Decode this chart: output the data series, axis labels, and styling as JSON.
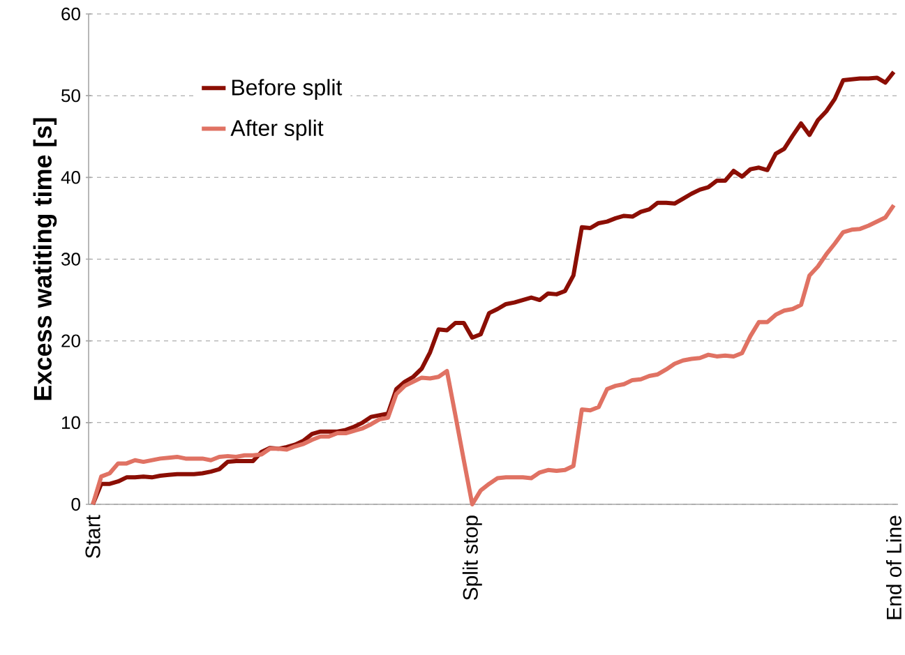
{
  "chart_data": {
    "type": "line",
    "ylabel": "Excess watiting time [s]",
    "categories": [
      "Start",
      null,
      null,
      null,
      null,
      null,
      null,
      null,
      null,
      null,
      null,
      null,
      null,
      null,
      null,
      null,
      null,
      null,
      null,
      null,
      null,
      null,
      null,
      null,
      null,
      null,
      null,
      null,
      null,
      null,
      null,
      null,
      null,
      null,
      null,
      null,
      null,
      null,
      null,
      null,
      null,
      null,
      null,
      null,
      null,
      "Split stop",
      null,
      null,
      null,
      null,
      null,
      null,
      null,
      null,
      null,
      null,
      null,
      null,
      null,
      null,
      null,
      null,
      null,
      null,
      null,
      null,
      null,
      null,
      null,
      null,
      null,
      null,
      null,
      null,
      null,
      null,
      null,
      null,
      null,
      null,
      null,
      null,
      null,
      null,
      null,
      null,
      null,
      null,
      null,
      null,
      null,
      null,
      null,
      null,
      null,
      "End of Line"
    ],
    "series": [
      {
        "name": "Before split",
        "color": "#8b0e04",
        "values": [
          0,
          2.5,
          2.5,
          2.8,
          3.3,
          3.3,
          3.4,
          3.3,
          3.5,
          3.6,
          3.7,
          3.7,
          3.7,
          3.8,
          4.0,
          4.3,
          5.2,
          5.3,
          5.3,
          5.3,
          6.4,
          6.9,
          6.8,
          7.0,
          7.3,
          7.8,
          8.6,
          8.9,
          8.9,
          8.9,
          9.1,
          9.5,
          10.0,
          10.7,
          10.9,
          11.1,
          14.1,
          15.0,
          15.6,
          16.6,
          18.6,
          21.4,
          21.3,
          22.2,
          22.2,
          20.4,
          20.8,
          23.4,
          23.9,
          24.5,
          24.7,
          25.0,
          25.3,
          25.0,
          25.8,
          25.7,
          26.1,
          28.0,
          33.9,
          33.8,
          34.4,
          34.6,
          35.0,
          35.3,
          35.2,
          35.8,
          36.1,
          36.9,
          36.9,
          36.8,
          37.4,
          38.0,
          38.5,
          38.8,
          39.6,
          39.6,
          40.8,
          40.1,
          41.0,
          41.2,
          40.9,
          42.9,
          43.5,
          45.1,
          46.6,
          45.2,
          47.0,
          48.1,
          49.6,
          51.9,
          52.0,
          52.1,
          52.1,
          52.2,
          51.6,
          52.9
        ]
      },
      {
        "name": "After split",
        "color": "#e07263",
        "values": [
          0,
          3.4,
          3.8,
          5.0,
          5.0,
          5.4,
          5.2,
          5.4,
          5.6,
          5.7,
          5.8,
          5.6,
          5.6,
          5.6,
          5.4,
          5.8,
          5.9,
          5.8,
          6.0,
          6.0,
          6.1,
          6.8,
          6.8,
          6.7,
          7.1,
          7.4,
          7.9,
          8.3,
          8.3,
          8.7,
          8.7,
          9.0,
          9.3,
          9.8,
          10.4,
          10.6,
          13.5,
          14.5,
          15.0,
          15.5,
          15.4,
          15.6,
          16.3,
          10.9,
          5.4,
          0,
          1.7,
          2.5,
          3.2,
          3.3,
          3.3,
          3.3,
          3.2,
          3.9,
          4.2,
          4.1,
          4.2,
          4.7,
          11.6,
          11.5,
          11.9,
          14.1,
          14.5,
          14.7,
          15.2,
          15.3,
          15.7,
          15.9,
          16.5,
          17.2,
          17.6,
          17.8,
          17.9,
          18.3,
          18.1,
          18.2,
          18.1,
          18.5,
          20.6,
          22.3,
          22.3,
          23.2,
          23.7,
          23.9,
          24.4,
          28.0,
          29.1,
          30.6,
          31.9,
          33.3,
          33.6,
          33.7,
          34.1,
          34.6,
          35.1,
          36.6
        ]
      }
    ],
    "ylim": [
      0,
      60
    ],
    "yticks": [
      0,
      10,
      20,
      30,
      40,
      50,
      60
    ],
    "grid": "y",
    "legend": "top left",
    "marker": "none",
    "line_style": "solid"
  }
}
